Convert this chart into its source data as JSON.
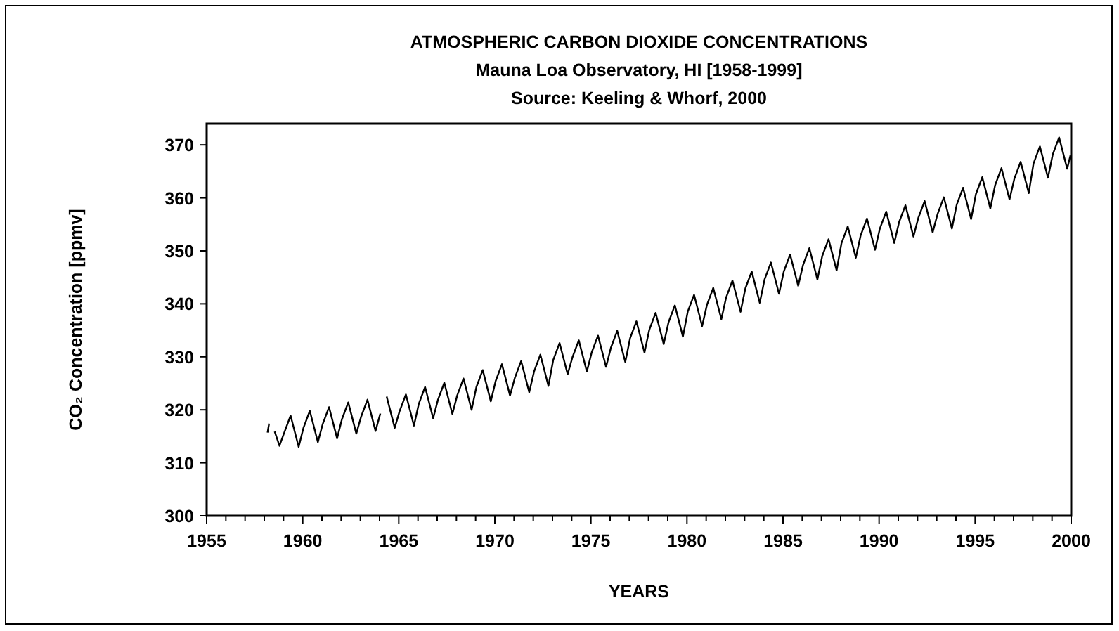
{
  "chart_data": {
    "type": "line",
    "title": "ATMOSPHERIC CARBON DIOXIDE CONCENTRATIONS",
    "subtitle": "Mauna Loa Observatory, HI [1958-1999]",
    "annotations": [
      "Source: Keeling & Whorf, 2000"
    ],
    "xlabel": "YEARS",
    "ylabel": "CO₂ Concentration [ppmv]",
    "xlim": [
      1955,
      2000
    ],
    "ylim": [
      300,
      374
    ],
    "xticks": [
      1955,
      {
        "value": 1956,
        "label": null
      },
      {
        "value": 1957,
        "label": null
      },
      {
        "value": 1958,
        "label": null
      },
      {
        "value": 1959,
        "label": null
      },
      1960,
      {
        "value": 1961,
        "label": null
      },
      {
        "value": 1962,
        "label": null
      },
      {
        "value": 1963,
        "label": null
      },
      {
        "value": 1964,
        "label": null
      },
      1965,
      {
        "value": 1966,
        "label": null
      },
      {
        "value": 1967,
        "label": null
      },
      {
        "value": 1968,
        "label": null
      },
      {
        "value": 1969,
        "label": null
      },
      1970,
      {
        "value": 1971,
        "label": null
      },
      {
        "value": 1972,
        "label": null
      },
      {
        "value": 1973,
        "label": null
      },
      {
        "value": 1974,
        "label": null
      },
      1975,
      {
        "value": 1976,
        "label": null
      },
      {
        "value": 1977,
        "label": null
      },
      {
        "value": 1978,
        "label": null
      },
      {
        "value": 1979,
        "label": null
      },
      1980,
      {
        "value": 1981,
        "label": null
      },
      {
        "value": 1982,
        "label": null
      },
      {
        "value": 1983,
        "label": null
      },
      {
        "value": 1984,
        "label": null
      },
      1985,
      {
        "value": 1986,
        "label": null
      },
      {
        "value": 1987,
        "label": null
      },
      {
        "value": 1988,
        "label": null
      },
      {
        "value": 1989,
        "label": null
      },
      1990,
      {
        "value": 1991,
        "label": null
      },
      {
        "value": 1992,
        "label": null
      },
      {
        "value": 1993,
        "label": null
      },
      {
        "value": 1994,
        "label": null
      },
      1995,
      {
        "value": 1996,
        "label": null
      },
      {
        "value": 1997,
        "label": null
      },
      {
        "value": 1998,
        "label": null
      },
      {
        "value": 1999,
        "label": null
      },
      2000
    ],
    "yticks": [
      300,
      310,
      320,
      330,
      340,
      350,
      360,
      370
    ],
    "grid": false,
    "marker": "none",
    "line_style": "solid",
    "series": [
      {
        "color": "#000000",
        "x": [
          1958.17,
          1958.25,
          1958.4,
          1958.54,
          1958.79,
          1959.04,
          1959.37,
          1959.79,
          1960.04,
          1960.37,
          1960.79,
          1961.04,
          1961.37,
          1961.79,
          1962.04,
          1962.37,
          1962.79,
          1963.04,
          1963.37,
          1963.79,
          1964.04,
          1964.2,
          1964.37,
          1964.79,
          1965.04,
          1965.37,
          1965.79,
          1966.04,
          1966.37,
          1966.79,
          1967.04,
          1967.37,
          1967.79,
          1968.04,
          1968.37,
          1968.79,
          1969.04,
          1969.37,
          1969.79,
          1970.04,
          1970.37,
          1970.79,
          1971.04,
          1971.37,
          1971.79,
          1972.04,
          1972.37,
          1972.79,
          1973.04,
          1973.37,
          1973.79,
          1974.04,
          1974.37,
          1974.79,
          1975.04,
          1975.37,
          1975.79,
          1976.04,
          1976.37,
          1976.79,
          1977.04,
          1977.37,
          1977.79,
          1978.04,
          1978.37,
          1978.79,
          1979.04,
          1979.37,
          1979.79,
          1980.04,
          1980.37,
          1980.79,
          1981.04,
          1981.37,
          1981.79,
          1982.04,
          1982.37,
          1982.79,
          1983.04,
          1983.37,
          1983.79,
          1984.04,
          1984.37,
          1984.79,
          1985.04,
          1985.37,
          1985.79,
          1986.04,
          1986.37,
          1986.79,
          1987.04,
          1987.37,
          1987.79,
          1988.04,
          1988.37,
          1988.79,
          1989.04,
          1989.37,
          1989.79,
          1990.04,
          1990.37,
          1990.79,
          1991.04,
          1991.37,
          1991.79,
          1992.04,
          1992.37,
          1992.79,
          1993.04,
          1993.37,
          1993.79,
          1994.04,
          1994.37,
          1994.79,
          1995.04,
          1995.37,
          1995.79,
          1996.04,
          1996.37,
          1996.79,
          1997.04,
          1997.37,
          1997.79,
          1998.04,
          1998.37,
          1998.79,
          1999.04,
          1999.37,
          1999.79,
          1999.96
        ],
        "values": [
          315.7,
          317.4,
          null,
          315.9,
          313.2,
          315.7,
          318.9,
          313.0,
          316.6,
          319.8,
          313.9,
          317.3,
          320.5,
          314.6,
          318.2,
          321.4,
          315.5,
          318.7,
          321.9,
          316.0,
          319.3,
          null,
          322.5,
          316.6,
          319.7,
          322.9,
          317.0,
          321.1,
          324.3,
          318.4,
          321.9,
          325.1,
          319.2,
          322.7,
          325.9,
          320.0,
          324.3,
          327.5,
          321.6,
          325.4,
          328.6,
          322.7,
          326.0,
          329.2,
          323.3,
          327.2,
          330.4,
          324.5,
          329.4,
          332.6,
          326.7,
          329.9,
          333.1,
          327.2,
          330.8,
          334.0,
          328.1,
          331.7,
          334.9,
          329.0,
          333.5,
          336.7,
          330.8,
          335.1,
          338.3,
          332.4,
          336.5,
          339.7,
          333.8,
          338.5,
          341.7,
          335.8,
          339.8,
          343.0,
          337.1,
          341.2,
          344.4,
          338.5,
          342.9,
          346.1,
          340.2,
          344.6,
          347.8,
          341.9,
          346.1,
          349.3,
          343.4,
          347.3,
          350.5,
          344.6,
          349.0,
          352.2,
          346.3,
          351.4,
          354.6,
          348.7,
          352.9,
          356.1,
          350.2,
          354.2,
          357.4,
          351.5,
          355.4,
          358.6,
          352.7,
          356.2,
          359.4,
          353.5,
          356.9,
          360.1,
          354.2,
          358.7,
          361.9,
          356.0,
          360.7,
          363.9,
          358.0,
          362.4,
          365.6,
          359.7,
          363.6,
          366.8,
          360.9,
          366.5,
          369.7,
          363.8,
          368.2,
          371.4,
          365.5,
          368.0
        ]
      }
    ]
  }
}
